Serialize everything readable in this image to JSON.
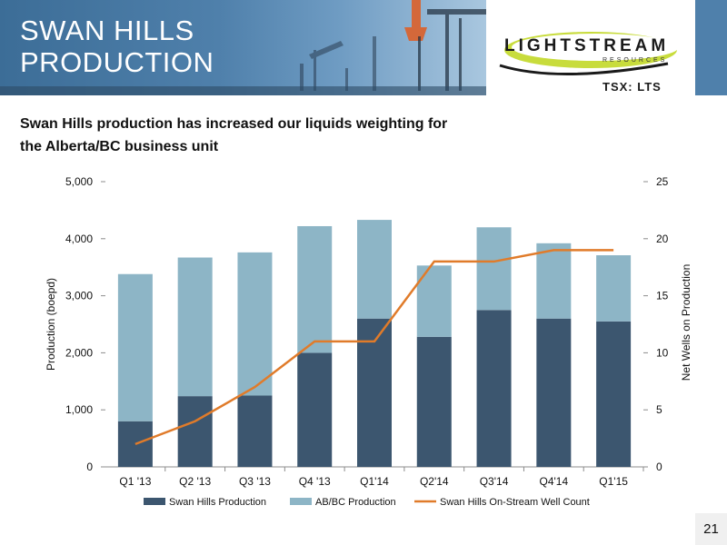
{
  "header": {
    "title_line1": "SWAN HILLS",
    "title_line2": "PRODUCTION",
    "logo_name": "LIGHTSTREAM",
    "logo_sub": "RESOURCES",
    "ticker": "TSX: LTS"
  },
  "subtitle_line1": "Swan Hills production has increased our liquids weighting for",
  "subtitle_line2": "the Alberta/BC business unit",
  "page_number": "21",
  "colors": {
    "header_blue": "#4f80ab",
    "swan_bar": "#3c566f",
    "abbc_bar": "#8db5c6",
    "line": "#e07b2a",
    "logo_green": "#c8dc3c"
  },
  "chart_data": {
    "type": "bar",
    "stacked": true,
    "categories": [
      "Q1 '13",
      "Q2 '13",
      "Q3 '13",
      "Q4 '13",
      "Q1'14",
      "Q2'14",
      "Q3'14",
      "Q4'14",
      "Q1'15"
    ],
    "series": [
      {
        "name": "Swan Hills Production",
        "type": "bar",
        "axis": "left",
        "values": [
          800,
          1240,
          1250,
          2000,
          2600,
          2280,
          2750,
          2600,
          2550
        ]
      },
      {
        "name": "AB/BC Production",
        "type": "bar",
        "axis": "left",
        "values": [
          2580,
          2430,
          2510,
          2220,
          1730,
          1250,
          1450,
          1320,
          1160
        ]
      },
      {
        "name": "Swan Hills On-Stream Well Count",
        "type": "line",
        "axis": "right",
        "values": [
          2,
          4,
          7,
          11,
          11,
          18,
          18,
          19,
          19
        ]
      }
    ],
    "ylabel": "Production (boepd)",
    "y2label": "Net Wells on Production",
    "ylim": [
      0,
      5000
    ],
    "y2lim": [
      0,
      25
    ],
    "yticks": [
      "0",
      "1,000",
      "2,000",
      "3,000",
      "4,000",
      "5,000"
    ],
    "y2ticks": [
      "0",
      "5",
      "10",
      "15",
      "20",
      "25"
    ],
    "legend_position": "bottom",
    "grid": false
  }
}
